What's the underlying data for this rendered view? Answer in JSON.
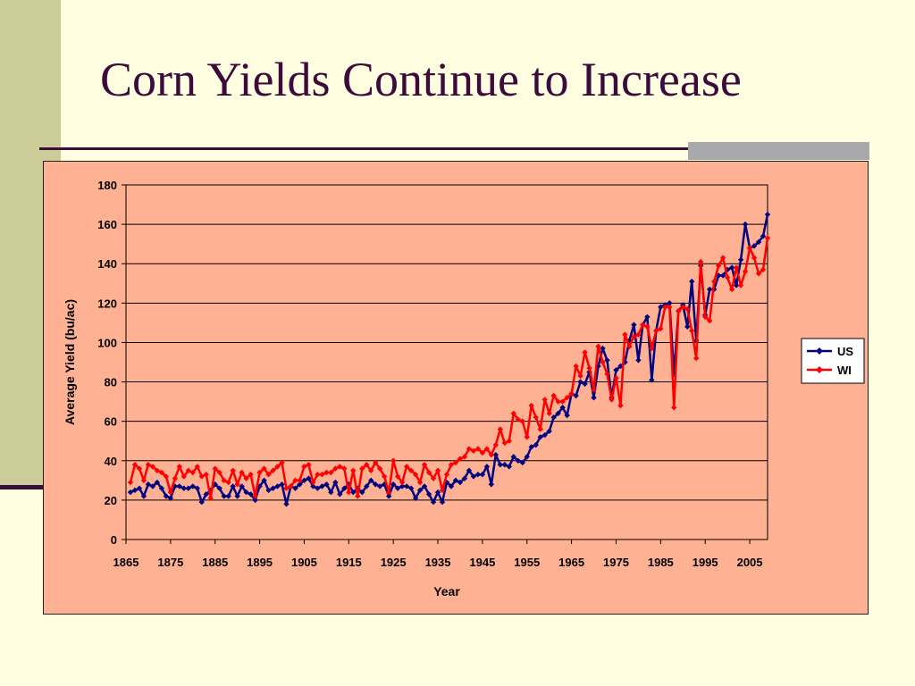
{
  "slide": {
    "title": "Corn Yields Continue to Increase"
  },
  "chart_data": {
    "type": "line",
    "xlabel": "Year",
    "ylabel": "Average Yield (bu/ac)",
    "xlim": [
      1865,
      2009
    ],
    "ylim": [
      0,
      180
    ],
    "x_ticks": [
      1865,
      1875,
      1885,
      1895,
      1905,
      1915,
      1925,
      1935,
      1945,
      1955,
      1965,
      1975,
      1985,
      1995,
      2005
    ],
    "y_ticks": [
      0,
      20,
      40,
      60,
      80,
      100,
      120,
      140,
      160,
      180
    ],
    "grid": "horizontal",
    "legend_position": "right",
    "series": [
      {
        "name": "US",
        "color": "#000080",
        "marker": "diamond",
        "points": [
          [
            1866,
            24
          ],
          [
            1867,
            25
          ],
          [
            1868,
            26
          ],
          [
            1869,
            22
          ],
          [
            1870,
            28
          ],
          [
            1871,
            27
          ],
          [
            1872,
            29
          ],
          [
            1873,
            26
          ],
          [
            1874,
            22
          ],
          [
            1875,
            21
          ],
          [
            1876,
            27
          ],
          [
            1877,
            27
          ],
          [
            1878,
            26
          ],
          [
            1879,
            26
          ],
          [
            1880,
            27
          ],
          [
            1881,
            26
          ],
          [
            1882,
            19
          ],
          [
            1883,
            23
          ],
          [
            1884,
            25
          ],
          [
            1885,
            28
          ],
          [
            1886,
            26
          ],
          [
            1887,
            22
          ],
          [
            1888,
            22
          ],
          [
            1889,
            27
          ],
          [
            1890,
            22
          ],
          [
            1891,
            27
          ],
          [
            1892,
            24
          ],
          [
            1893,
            23
          ],
          [
            1894,
            20
          ],
          [
            1895,
            27
          ],
          [
            1896,
            30
          ],
          [
            1897,
            25
          ],
          [
            1898,
            26
          ],
          [
            1899,
            27
          ],
          [
            1900,
            28
          ],
          [
            1901,
            18
          ],
          [
            1902,
            27
          ],
          [
            1903,
            26
          ],
          [
            1904,
            28
          ],
          [
            1905,
            30
          ],
          [
            1906,
            31
          ],
          [
            1907,
            27
          ],
          [
            1908,
            26
          ],
          [
            1909,
            27
          ],
          [
            1910,
            28
          ],
          [
            1911,
            24
          ],
          [
            1912,
            29
          ],
          [
            1913,
            23
          ],
          [
            1914,
            26
          ],
          [
            1915,
            28
          ],
          [
            1916,
            24
          ],
          [
            1917,
            26
          ],
          [
            1918,
            24
          ],
          [
            1919,
            27
          ],
          [
            1920,
            30
          ],
          [
            1921,
            28
          ],
          [
            1922,
            27
          ],
          [
            1923,
            28
          ],
          [
            1924,
            22
          ],
          [
            1925,
            28
          ],
          [
            1926,
            26
          ],
          [
            1927,
            27
          ],
          [
            1928,
            27
          ],
          [
            1929,
            26
          ],
          [
            1930,
            21
          ],
          [
            1931,
            25
          ],
          [
            1932,
            27
          ],
          [
            1933,
            23
          ],
          [
            1934,
            19
          ],
          [
            1935,
            24
          ],
          [
            1936,
            19
          ],
          [
            1937,
            29
          ],
          [
            1938,
            27
          ],
          [
            1939,
            30
          ],
          [
            1940,
            29
          ],
          [
            1941,
            31
          ],
          [
            1942,
            35
          ],
          [
            1943,
            32
          ],
          [
            1944,
            33
          ],
          [
            1945,
            33
          ],
          [
            1946,
            37
          ],
          [
            1947,
            28
          ],
          [
            1948,
            43
          ],
          [
            1949,
            38
          ],
          [
            1950,
            38
          ],
          [
            1951,
            37
          ],
          [
            1952,
            42
          ],
          [
            1953,
            40
          ],
          [
            1954,
            39
          ],
          [
            1955,
            42
          ],
          [
            1956,
            47
          ],
          [
            1957,
            48
          ],
          [
            1958,
            52
          ],
          [
            1959,
            53
          ],
          [
            1960,
            55
          ],
          [
            1961,
            62
          ],
          [
            1962,
            64
          ],
          [
            1963,
            67
          ],
          [
            1964,
            63
          ],
          [
            1965,
            74
          ],
          [
            1966,
            73
          ],
          [
            1967,
            80
          ],
          [
            1968,
            79
          ],
          [
            1969,
            85
          ],
          [
            1970,
            72
          ],
          [
            1971,
            88
          ],
          [
            1972,
            97
          ],
          [
            1973,
            91
          ],
          [
            1974,
            72
          ],
          [
            1975,
            86
          ],
          [
            1976,
            88
          ],
          [
            1977,
            90
          ],
          [
            1978,
            101
          ],
          [
            1979,
            109
          ],
          [
            1980,
            91
          ],
          [
            1981,
            109
          ],
          [
            1982,
            113
          ],
          [
            1983,
            81
          ],
          [
            1984,
            106
          ],
          [
            1985,
            118
          ],
          [
            1986,
            119
          ],
          [
            1987,
            120
          ],
          [
            1988,
            84
          ],
          [
            1989,
            116
          ],
          [
            1990,
            119
          ],
          [
            1991,
            108
          ],
          [
            1992,
            131
          ],
          [
            1993,
            101
          ],
          [
            1994,
            139
          ],
          [
            1995,
            114
          ],
          [
            1996,
            127
          ],
          [
            1997,
            127
          ],
          [
            1998,
            134
          ],
          [
            1999,
            134
          ],
          [
            2000,
            137
          ],
          [
            2001,
            138
          ],
          [
            2002,
            129
          ],
          [
            2003,
            142
          ],
          [
            2004,
            160
          ],
          [
            2005,
            148
          ],
          [
            2006,
            149
          ],
          [
            2007,
            151
          ],
          [
            2008,
            154
          ],
          [
            2009,
            165
          ]
        ]
      },
      {
        "name": "WI",
        "color": "#FF0000",
        "marker": "diamond",
        "points": [
          [
            1866,
            29
          ],
          [
            1867,
            38
          ],
          [
            1868,
            36
          ],
          [
            1869,
            30
          ],
          [
            1870,
            38
          ],
          [
            1871,
            37
          ],
          [
            1872,
            35
          ],
          [
            1873,
            34
          ],
          [
            1874,
            32
          ],
          [
            1875,
            24
          ],
          [
            1876,
            31
          ],
          [
            1877,
            37
          ],
          [
            1878,
            32
          ],
          [
            1879,
            35
          ],
          [
            1880,
            34
          ],
          [
            1881,
            37
          ],
          [
            1882,
            32
          ],
          [
            1883,
            33
          ],
          [
            1884,
            21
          ],
          [
            1885,
            36
          ],
          [
            1886,
            34
          ],
          [
            1887,
            30
          ],
          [
            1888,
            29
          ],
          [
            1889,
            35
          ],
          [
            1890,
            28
          ],
          [
            1891,
            34
          ],
          [
            1892,
            31
          ],
          [
            1893,
            33
          ],
          [
            1894,
            22
          ],
          [
            1895,
            34
          ],
          [
            1896,
            36
          ],
          [
            1897,
            33
          ],
          [
            1898,
            35
          ],
          [
            1899,
            37
          ],
          [
            1900,
            39
          ],
          [
            1901,
            26
          ],
          [
            1902,
            27
          ],
          [
            1903,
            30
          ],
          [
            1904,
            30
          ],
          [
            1905,
            37
          ],
          [
            1906,
            38
          ],
          [
            1907,
            29
          ],
          [
            1908,
            33
          ],
          [
            1909,
            33
          ],
          [
            1910,
            34
          ],
          [
            1911,
            34
          ],
          [
            1912,
            36
          ],
          [
            1913,
            37
          ],
          [
            1914,
            36
          ],
          [
            1915,
            24
          ],
          [
            1916,
            35
          ],
          [
            1917,
            22
          ],
          [
            1918,
            36
          ],
          [
            1919,
            38
          ],
          [
            1920,
            35
          ],
          [
            1921,
            39
          ],
          [
            1922,
            36
          ],
          [
            1923,
            32
          ],
          [
            1924,
            24
          ],
          [
            1925,
            40
          ],
          [
            1926,
            32
          ],
          [
            1927,
            29
          ],
          [
            1928,
            37
          ],
          [
            1929,
            35
          ],
          [
            1930,
            33
          ],
          [
            1931,
            29
          ],
          [
            1932,
            38
          ],
          [
            1933,
            34
          ],
          [
            1934,
            31
          ],
          [
            1935,
            35
          ],
          [
            1936,
            25
          ],
          [
            1937,
            33
          ],
          [
            1938,
            38
          ],
          [
            1939,
            39
          ],
          [
            1940,
            41
          ],
          [
            1941,
            42
          ],
          [
            1942,
            46
          ],
          [
            1943,
            45
          ],
          [
            1944,
            46
          ],
          [
            1945,
            44
          ],
          [
            1946,
            46
          ],
          [
            1947,
            43
          ],
          [
            1948,
            48
          ],
          [
            1949,
            56
          ],
          [
            1950,
            49
          ],
          [
            1951,
            50
          ],
          [
            1952,
            64
          ],
          [
            1953,
            61
          ],
          [
            1954,
            60
          ],
          [
            1955,
            52
          ],
          [
            1956,
            68
          ],
          [
            1957,
            62
          ],
          [
            1958,
            56
          ],
          [
            1959,
            71
          ],
          [
            1960,
            64
          ],
          [
            1961,
            73
          ],
          [
            1962,
            70
          ],
          [
            1963,
            70
          ],
          [
            1964,
            72
          ],
          [
            1965,
            74
          ],
          [
            1966,
            88
          ],
          [
            1967,
            83
          ],
          [
            1968,
            95
          ],
          [
            1969,
            87
          ],
          [
            1970,
            76
          ],
          [
            1971,
            98
          ],
          [
            1972,
            90
          ],
          [
            1973,
            84
          ],
          [
            1974,
            71
          ],
          [
            1975,
            82
          ],
          [
            1976,
            68
          ],
          [
            1977,
            104
          ],
          [
            1978,
            98
          ],
          [
            1979,
            103
          ],
          [
            1980,
            104
          ],
          [
            1981,
            109
          ],
          [
            1982,
            108
          ],
          [
            1983,
            97
          ],
          [
            1984,
            106
          ],
          [
            1985,
            107
          ],
          [
            1986,
            118
          ],
          [
            1987,
            118
          ],
          [
            1988,
            67
          ],
          [
            1989,
            116
          ],
          [
            1990,
            118
          ],
          [
            1991,
            117
          ],
          [
            1992,
            106
          ],
          [
            1993,
            92
          ],
          [
            1994,
            141
          ],
          [
            1995,
            113
          ],
          [
            1996,
            111
          ],
          [
            1997,
            131
          ],
          [
            1998,
            139
          ],
          [
            1999,
            143
          ],
          [
            2000,
            133
          ],
          [
            2001,
            127
          ],
          [
            2002,
            138
          ],
          [
            2003,
            129
          ],
          [
            2004,
            136
          ],
          [
            2005,
            148
          ],
          [
            2006,
            143
          ],
          [
            2007,
            135
          ],
          [
            2008,
            137
          ],
          [
            2009,
            153
          ]
        ]
      }
    ]
  }
}
